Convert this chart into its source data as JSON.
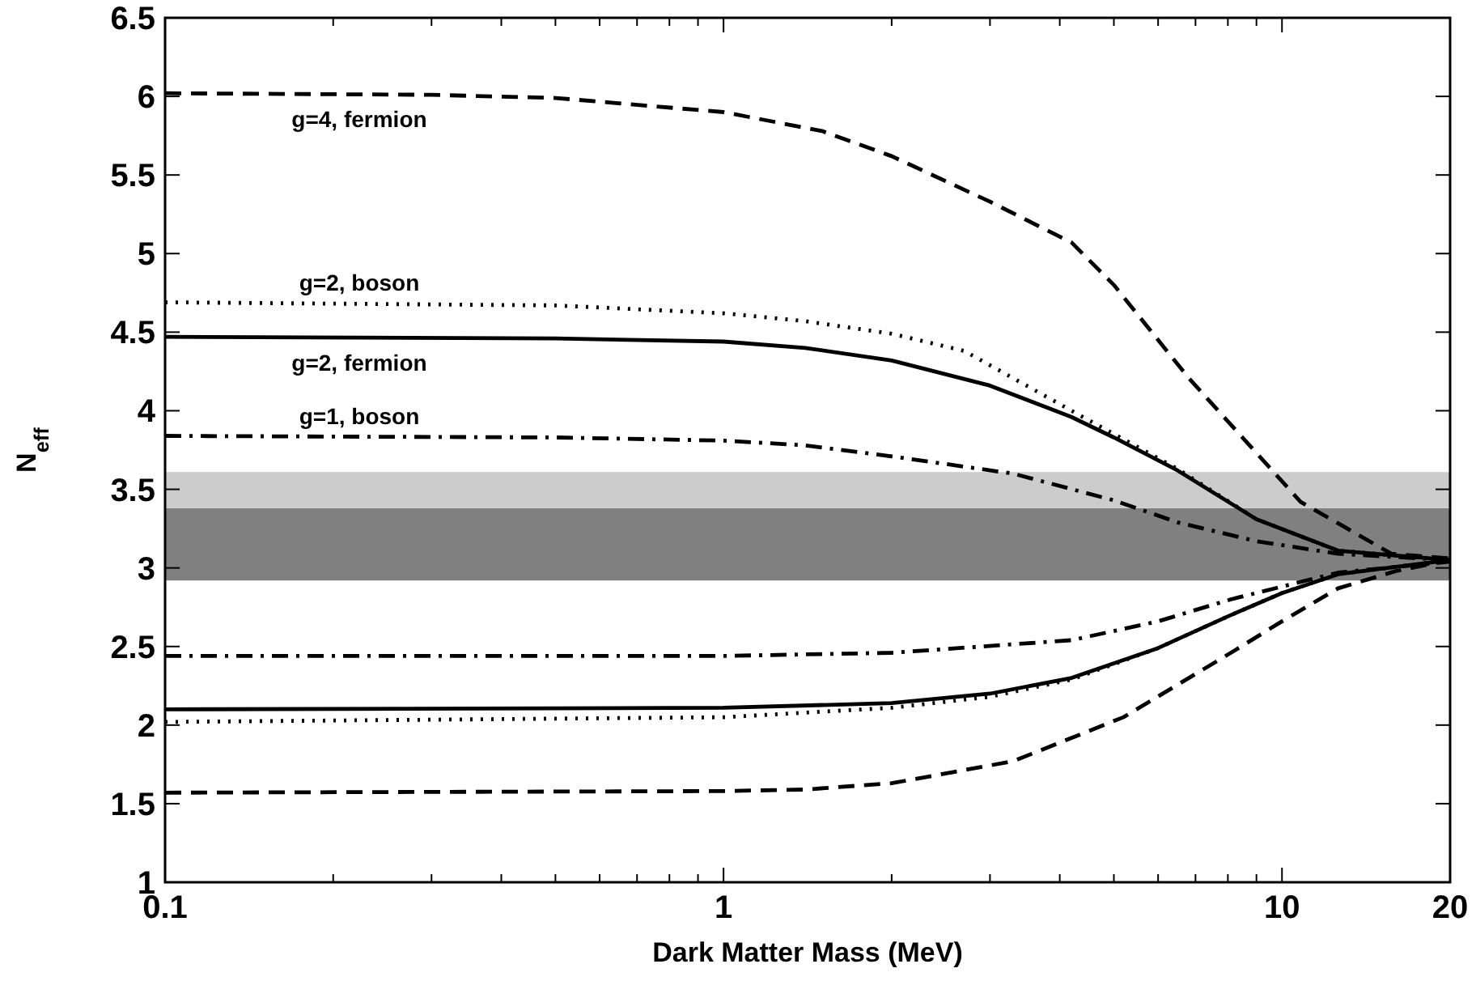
{
  "chart_data": {
    "type": "line",
    "xlabel": "Dark Matter Mass (MeV)",
    "ylabel": "N$_{eff}$",
    "log": "x",
    "grid": false,
    "xlim": [
      0.1,
      20
    ],
    "ylim": [
      1,
      6.5
    ],
    "xticks": [
      0.1,
      {
        "value": 0.2,
        "label": null
      },
      {
        "value": 0.3,
        "label": null
      },
      {
        "value": 0.4,
        "label": null
      },
      {
        "value": 0.5,
        "label": null
      },
      {
        "value": 0.6,
        "label": null
      },
      {
        "value": 0.7,
        "label": null
      },
      {
        "value": 0.8,
        "label": null
      },
      {
        "value": 0.9,
        "label": null
      },
      1,
      {
        "value": 2,
        "label": null
      },
      {
        "value": 3,
        "label": null
      },
      {
        "value": 4,
        "label": null
      },
      {
        "value": 5,
        "label": null
      },
      {
        "value": 6,
        "label": null
      },
      {
        "value": 7,
        "label": null
      },
      {
        "value": 8,
        "label": null
      },
      {
        "value": 9,
        "label": null
      },
      10,
      20
    ],
    "yticks": [
      1,
      1.5,
      2,
      2.5,
      3,
      3.5,
      4,
      4.5,
      5,
      5.5,
      6,
      6.5
    ],
    "bands": [
      {
        "axis": "y",
        "from": 2.92,
        "to": 3.38,
        "color": "#808080"
      },
      {
        "axis": "y",
        "from": 3.38,
        "to": 3.61,
        "color": "#cccccc"
      }
    ],
    "series": [
      {
        "name": "g=4, fermion",
        "color": "#000000",
        "line_style": "dashed",
        "x": [
          0.1,
          0.3,
          0.5,
          1,
          1.5,
          2,
          3,
          4.2,
          5,
          6.8,
          10.8,
          15.7,
          20
        ],
        "values": [
          6.02,
          6.01,
          5.99,
          5.9,
          5.78,
          5.62,
          5.33,
          5.07,
          4.8,
          4.21,
          3.42,
          3.09,
          3.06
        ]
      },
      {
        "name": "g=2, boson",
        "color": "#000000",
        "line_style": "dotted",
        "x": [
          0.1,
          0.5,
          1,
          1.4,
          2,
          2.7,
          4.2,
          6.5,
          9,
          12.6,
          20
        ],
        "values": [
          4.69,
          4.67,
          4.62,
          4.57,
          4.49,
          4.38,
          4.0,
          3.63,
          3.31,
          3.11,
          3.05
        ]
      },
      {
        "name": "g=2, fermion",
        "color": "#000000",
        "line_style": "solid",
        "x": [
          0.1,
          0.5,
          1,
          1.4,
          2,
          3,
          4.2,
          5,
          6.5,
          9,
          12.6,
          20
        ],
        "values": [
          4.47,
          4.46,
          4.44,
          4.4,
          4.32,
          4.16,
          3.96,
          3.83,
          3.62,
          3.31,
          3.11,
          3.05
        ]
      },
      {
        "name": "g=1, boson",
        "color": "#000000",
        "line_style": "dashdot",
        "x": [
          0.1,
          0.5,
          1,
          1.4,
          2,
          3.3,
          5,
          6.5,
          9,
          12.6,
          20
        ],
        "values": [
          3.84,
          3.83,
          3.81,
          3.78,
          3.71,
          3.6,
          3.43,
          3.29,
          3.17,
          3.09,
          3.05
        ]
      },
      {
        "color": "#000000",
        "line_style": "dashdot",
        "x": [
          0.1,
          1,
          2,
          4.2,
          6,
          8.1,
          12.6,
          20
        ],
        "values": [
          2.44,
          2.44,
          2.46,
          2.54,
          2.66,
          2.8,
          2.97,
          3.04
        ]
      },
      {
        "color": "#000000",
        "line_style": "solid",
        "x": [
          0.1,
          1,
          2,
          3,
          4.2,
          6,
          8.1,
          10,
          12.6,
          20
        ],
        "values": [
          2.1,
          2.11,
          2.14,
          2.2,
          2.3,
          2.49,
          2.7,
          2.84,
          2.96,
          3.05
        ]
      },
      {
        "color": "#000000",
        "line_style": "dotted",
        "x": [
          0.1,
          1,
          2,
          3,
          4.2,
          6,
          8.1,
          10,
          12.6,
          20
        ],
        "values": [
          2.02,
          2.05,
          2.11,
          2.18,
          2.29,
          2.49,
          2.7,
          2.84,
          2.96,
          3.05
        ]
      },
      {
        "color": "#000000",
        "line_style": "dashed",
        "x": [
          0.1,
          1,
          1.4,
          2,
          3.3,
          5.2,
          8.1,
          10,
          12.6,
          16,
          20
        ],
        "values": [
          1.57,
          1.58,
          1.59,
          1.63,
          1.77,
          2.05,
          2.46,
          2.66,
          2.87,
          2.98,
          3.05
        ]
      }
    ]
  }
}
